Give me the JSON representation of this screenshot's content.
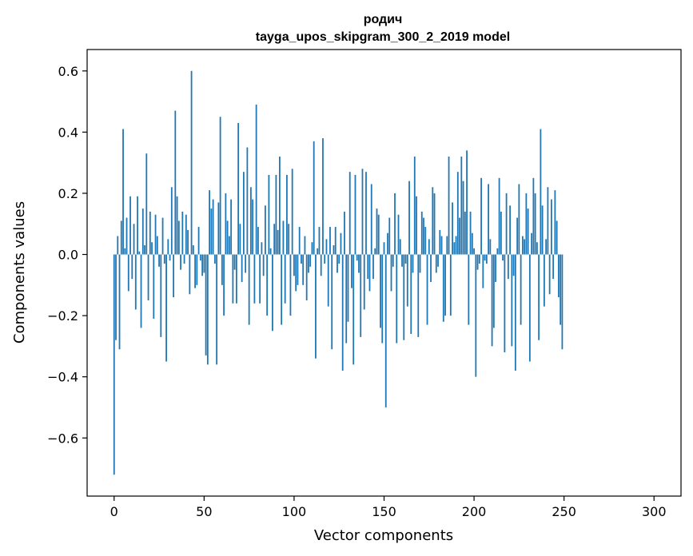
{
  "chart_data": {
    "type": "bar",
    "title_line1": "родич",
    "title_line2": "tayga_upos_skipgram_300_2_2019 model",
    "xlabel": "Vector components",
    "ylabel": "Components values",
    "xlim": [
      -15,
      315
    ],
    "ylim": [
      -0.79,
      0.67
    ],
    "xticks": [
      0,
      50,
      100,
      150,
      200,
      250,
      300
    ],
    "yticks": [
      -0.6,
      -0.4,
      -0.2,
      0.0,
      0.2,
      0.4,
      0.6
    ],
    "ytick_labels": [
      "−0.6",
      "−0.4",
      "−0.2",
      "0.0",
      "0.2",
      "0.4",
      "0.6"
    ],
    "bar_color": "#1f77b4",
    "grid": false,
    "values": [
      -0.72,
      -0.28,
      0.06,
      -0.31,
      0.11,
      0.41,
      0.02,
      0.12,
      -0.12,
      0.19,
      -0.08,
      0.1,
      -0.18,
      0.19,
      0.01,
      -0.24,
      0.15,
      0.03,
      0.33,
      -0.15,
      0.14,
      0.04,
      -0.21,
      0.13,
      0.06,
      -0.04,
      -0.27,
      0.12,
      -0.03,
      -0.35,
      0.05,
      -0.02,
      0.22,
      -0.14,
      0.47,
      0.19,
      0.11,
      -0.05,
      0.14,
      -0.03,
      0.13,
      0.08,
      -0.13,
      0.6,
      0.03,
      -0.11,
      -0.1,
      0.09,
      -0.02,
      -0.07,
      -0.06,
      -0.33,
      -0.36,
      0.21,
      0.15,
      0.18,
      -0.03,
      -0.36,
      0.17,
      0.45,
      -0.1,
      -0.2,
      0.2,
      0.11,
      0.06,
      0.18,
      -0.16,
      -0.05,
      -0.16,
      0.43,
      0.1,
      -0.09,
      0.27,
      -0.06,
      0.35,
      -0.23,
      0.22,
      0.18,
      -0.16,
      0.49,
      0.09,
      -0.16,
      0.04,
      -0.07,
      0.16,
      -0.2,
      0.26,
      0.02,
      -0.25,
      0.1,
      0.26,
      0.08,
      0.32,
      -0.23,
      0.11,
      -0.16,
      0.26,
      0.1,
      -0.2,
      0.28,
      -0.07,
      -0.12,
      -0.1,
      0.09,
      -0.03,
      -0.1,
      0.06,
      -0.15,
      -0.06,
      -0.04,
      0.04,
      0.37,
      -0.34,
      0.02,
      0.09,
      -0.07,
      0.38,
      -0.03,
      0.05,
      -0.17,
      0.09,
      -0.31,
      0.03,
      0.09,
      -0.06,
      -0.03,
      0.07,
      -0.38,
      0.14,
      -0.29,
      -0.22,
      0.27,
      -0.11,
      -0.36,
      0.26,
      -0.02,
      -0.06,
      -0.27,
      0.28,
      -0.18,
      0.27,
      -0.08,
      -0.12,
      0.23,
      -0.08,
      0.02,
      0.15,
      0.13,
      -0.24,
      -0.29,
      0.04,
      -0.5,
      0.07,
      0.12,
      -0.12,
      -0.04,
      0.2,
      -0.29,
      0.13,
      0.05,
      -0.04,
      -0.28,
      -0.03,
      -0.17,
      0.24,
      -0.26,
      -0.06,
      0.32,
      0.19,
      -0.27,
      -0.06,
      0.14,
      0.12,
      0.09,
      -0.23,
      0.05,
      -0.09,
      0.22,
      0.2,
      -0.06,
      -0.04,
      0.08,
      0.06,
      -0.22,
      -0.2,
      0.06,
      0.32,
      -0.2,
      0.17,
      0.04,
      0.06,
      0.27,
      0.12,
      0.32,
      0.24,
      0.14,
      0.34,
      -0.23,
      0.14,
      0.07,
      0.02,
      -0.4,
      -0.05,
      -0.03,
      0.25,
      -0.11,
      -0.02,
      -0.03,
      0.23,
      0.05,
      -0.3,
      -0.24,
      -0.09,
      0.02,
      0.25,
      0.14,
      -0.02,
      -0.32,
      0.2,
      -0.08,
      0.16,
      -0.3,
      -0.07,
      -0.38,
      0.12,
      0.23,
      -0.23,
      0.06,
      0.05,
      0.2,
      0.15,
      -0.35,
      0.07,
      0.25,
      0.2,
      0.04,
      -0.28,
      0.41,
      0.16,
      -0.17,
      0.05,
      0.22,
      -0.13,
      0.18,
      -0.08,
      0.21,
      0.11,
      -0.14,
      -0.23,
      -0.31
    ]
  }
}
